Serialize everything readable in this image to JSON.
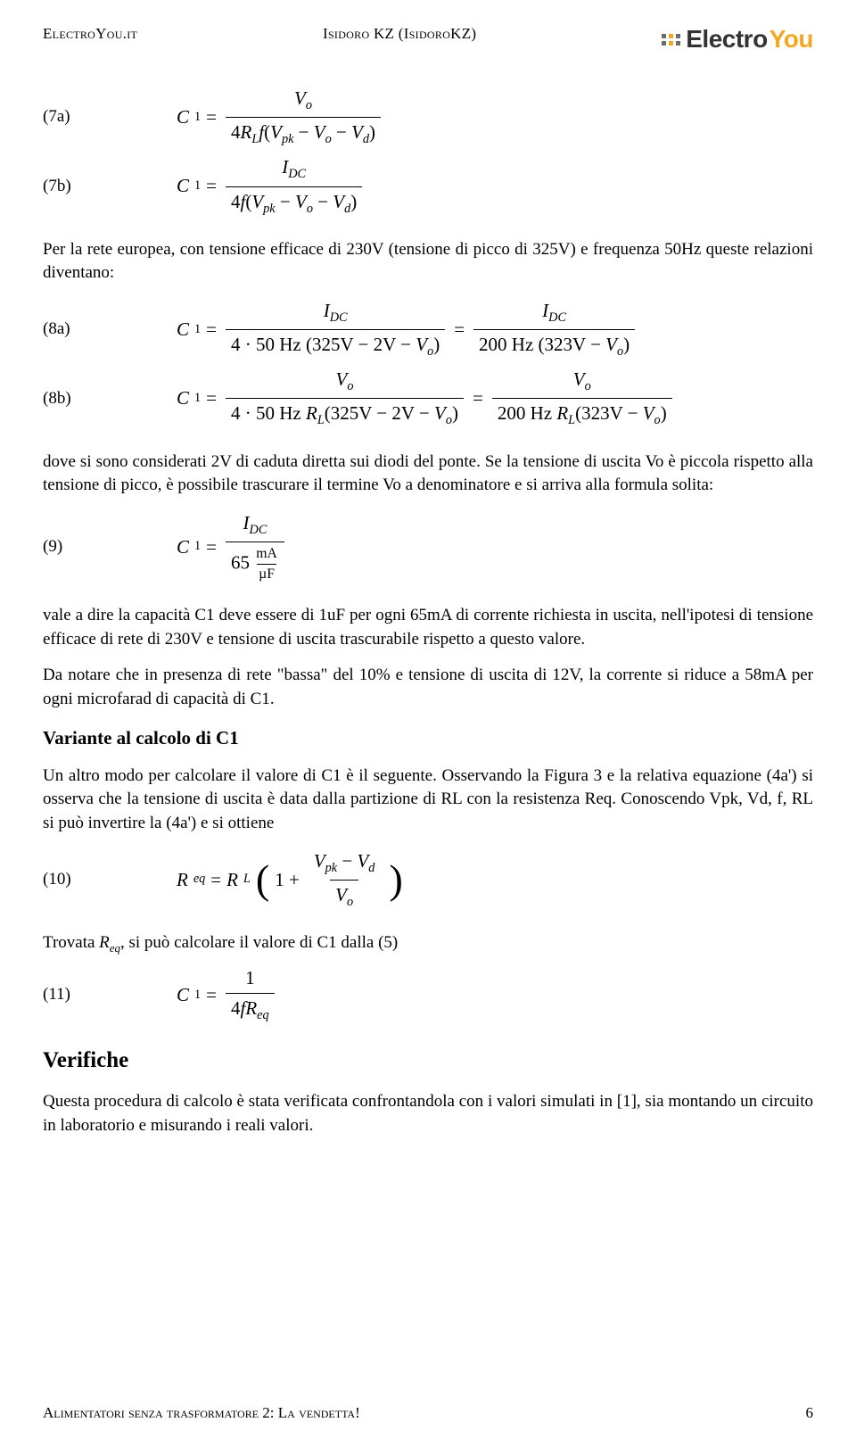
{
  "header": {
    "site": "ElectroYou.it",
    "author": "Isidoro KZ (IsidoroKZ)",
    "logo_electro": "Electro",
    "logo_you": "You",
    "logo_dot_colors": [
      "#6b6b6b",
      "#f5a623",
      "#6b6b6b",
      "#6b6b6b",
      "#f5a623",
      "#6b6b6b"
    ]
  },
  "eq7a": {
    "label": "(7a)",
    "lhs_var": "C",
    "lhs_sub": "1",
    "num_var": "V",
    "num_sub": "o",
    "den": "4R_L f(V_pk − V_o − V_d)"
  },
  "eq7b": {
    "label": "(7b)",
    "lhs_var": "C",
    "lhs_sub": "1",
    "num_var": "I",
    "num_sub": "DC",
    "den": "4f(V_pk − V_o − V_d)"
  },
  "para1": "Per la rete europea, con tensione efficace di 230V (tensione di picco di 325V) e frequenza 50Hz queste relazioni diventano:",
  "eq8a": {
    "label": "(8a)",
    "lhs": "C_1",
    "frac1_num": "I_DC",
    "frac1_den": "4 · 50 Hz (325V − 2V − V_o)",
    "frac2_num": "I_DC",
    "frac2_den": "200 Hz (323V − V_o)"
  },
  "eq8b": {
    "label": "(8b)",
    "lhs": "C_1",
    "frac1_num": "V_o",
    "frac1_den": "4 · 50 Hz R_L(325V − 2V − V_o)",
    "frac2_num": "V_o",
    "frac2_den": "200 Hz R_L(323V − V_o)"
  },
  "para2": "dove si sono considerati 2V di caduta diretta sui diodi del ponte. Se la tensione di uscita Vo è piccola rispetto alla tensione di picco, è possibile trascurare il termine Vo a denominatore e si arriva alla formula solita:",
  "eq9": {
    "label": "(9)",
    "lhs": "C_1",
    "num": "I_DC",
    "den_coef": "65",
    "den_unit_num": "mA",
    "den_unit_den": "µF"
  },
  "para3": "vale a dire la capacità C1 deve essere di 1uF per ogni 65mA di corrente richiesta in uscita, nell'ipotesi di tensione efficace di rete di 230V e tensione di uscita trascurabile rispetto a questo valore.",
  "para4": "Da notare che in presenza di rete \"bassa\" del 10% e tensione di uscita di 12V, la corrente si riduce a 58mA per ogni microfarad di capacità di C1.",
  "heading1": "Variante al calcolo di C1",
  "para5": "Un altro modo per calcolare il valore di C1 è il seguente. Osservando la Figura 3 e la relativa equazione (4a') si osserva che la tensione di uscita è data dalla partizione di RL con la resistenza Req. Conoscendo Vpk, Vd, f, RL si può invertire la (4a') e si ottiene",
  "eq10": {
    "label": "(10)",
    "lhs": "R_eq",
    "rhs_R": "R_L",
    "frac_num": "V_pk − V_d",
    "frac_den": "V_o"
  },
  "para6_pre": "Trovata ",
  "para6_var": "R",
  "para6_sub": "eq",
  "para6_post": ", si può calcolare il valore di C1 dalla (5)",
  "eq11": {
    "label": "(11)",
    "lhs": "C_1",
    "num": "1",
    "den": "4fR_eq"
  },
  "heading2": "Verifiche",
  "para7": "Questa procedura di calcolo è stata verificata confrontandola con i valori simulati in [1], sia montando un circuito in laboratorio e misurando i reali valori.",
  "footer": {
    "title": "Alimentatori senza trasformatore 2: La vendetta!",
    "page": "6"
  }
}
